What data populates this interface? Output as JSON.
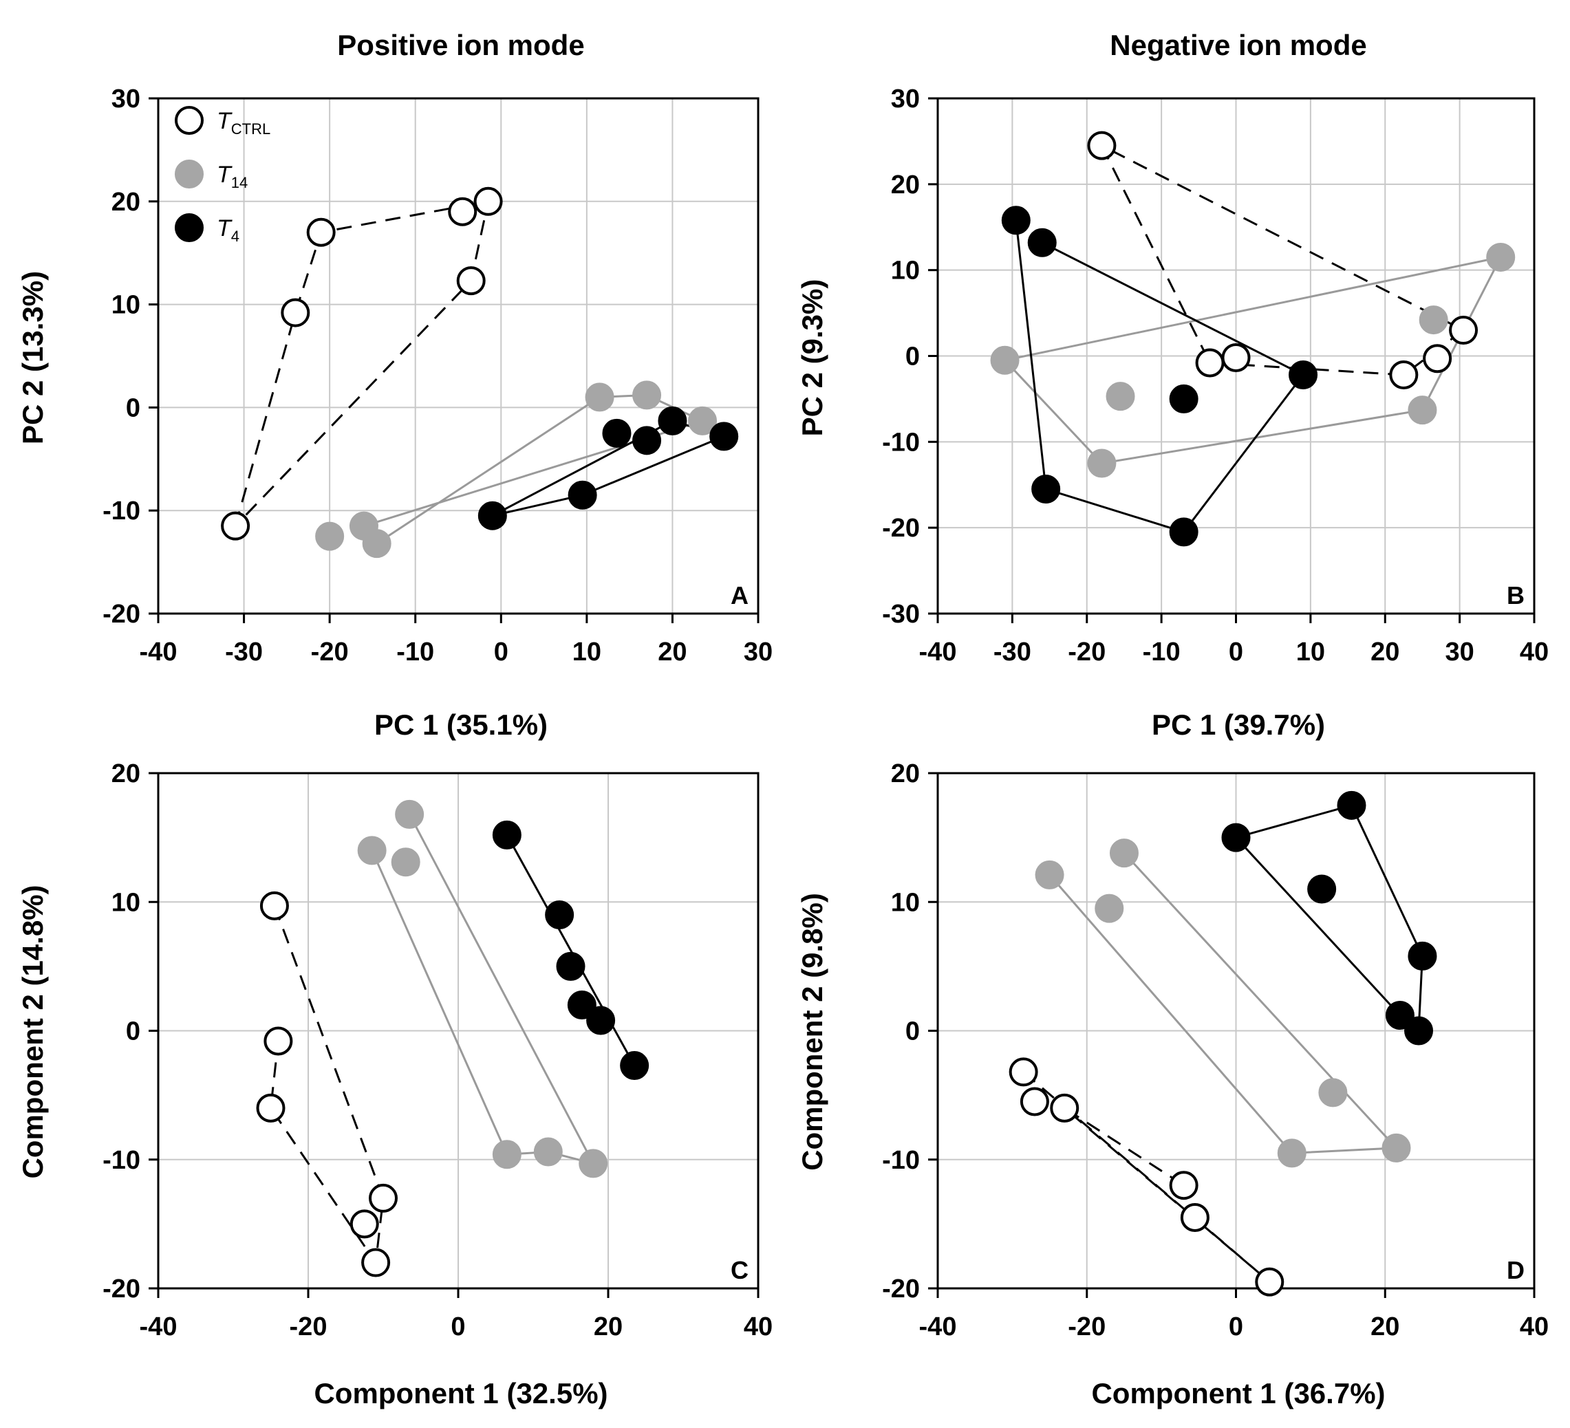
{
  "figure": {
    "col_titles": [
      "Positive ion mode",
      "Negative ion mode"
    ],
    "legend": [
      {
        "label": "T",
        "sub": "CTRL",
        "style": "open"
      },
      {
        "label": "T",
        "sub": "14",
        "style": "gray"
      },
      {
        "label": "T",
        "sub": "4",
        "style": "black"
      }
    ],
    "colors": {
      "gray": "#a6a6a6",
      "black": "#000000",
      "open": "#ffffff",
      "grid": "#c8c8c8",
      "gray_line": "#9a9a9a"
    }
  },
  "chart_data": [
    {
      "type": "scatter",
      "panel": "A",
      "xlabel": "PC 1 (35.1%)",
      "ylabel": "PC 2 (13.3%)",
      "xlim": [
        -40,
        30
      ],
      "ylim": [
        -20,
        30
      ],
      "xticks": [
        -40,
        -30,
        -20,
        -10,
        0,
        10,
        20,
        30
      ],
      "yticks": [
        -20,
        -10,
        0,
        10,
        20,
        30
      ],
      "grid": true,
      "show_legend": true,
      "series": [
        {
          "name": "T_CTRL",
          "style": "open",
          "line": "dashed",
          "points": [
            [
              -24,
              9.2
            ],
            [
              -21,
              17
            ],
            [
              -4.5,
              19
            ],
            [
              -1.5,
              20
            ],
            [
              -3.5,
              12.3
            ],
            [
              -31,
              -11.5
            ]
          ],
          "path": [
            [
              -31,
              -11.5
            ],
            [
              -24,
              9.2
            ],
            [
              -21,
              17
            ],
            [
              -1.5,
              20
            ],
            [
              -3.5,
              12.3
            ],
            [
              -31,
              -11.5
            ]
          ]
        },
        {
          "name": "T_14",
          "style": "gray",
          "line": "solid",
          "points": [
            [
              11.5,
              1
            ],
            [
              17,
              1.2
            ],
            [
              23.5,
              -1.3
            ],
            [
              -20,
              -12.5
            ],
            [
              -16,
              -11.5
            ],
            [
              -14.5,
              -13.2
            ]
          ],
          "path": [
            [
              -14.5,
              -13.2
            ],
            [
              11.5,
              1
            ],
            [
              17,
              1.2
            ],
            [
              23.5,
              -1.3
            ],
            [
              -16,
              -11.5
            ],
            [
              -14.5,
              -13.2
            ]
          ]
        },
        {
          "name": "T_4",
          "style": "black",
          "line": "solid",
          "points": [
            [
              13.5,
              -2.5
            ],
            [
              17,
              -3.2
            ],
            [
              20,
              -1.3
            ],
            [
              26,
              -2.8
            ],
            [
              9.5,
              -8.5
            ],
            [
              -1,
              -10.5
            ]
          ],
          "path": [
            [
              -1,
              -10.5
            ],
            [
              20,
              -1.3
            ],
            [
              26,
              -2.8
            ],
            [
              9.5,
              -8.5
            ],
            [
              -1,
              -10.5
            ]
          ]
        }
      ]
    },
    {
      "type": "scatter",
      "panel": "B",
      "xlabel": "PC 1 (39.7%)",
      "ylabel": "PC 2 (9.3%)",
      "xlim": [
        -40,
        40
      ],
      "ylim": [
        -30,
        30
      ],
      "xticks": [
        -40,
        -30,
        -20,
        -10,
        0,
        10,
        20,
        30,
        40
      ],
      "yticks": [
        -30,
        -20,
        -10,
        0,
        10,
        20,
        30
      ],
      "grid": true,
      "show_legend": false,
      "series": [
        {
          "name": "T_CTRL",
          "style": "open",
          "line": "dashed",
          "points": [
            [
              -18,
              24.5
            ],
            [
              -3.5,
              -0.8
            ],
            [
              0,
              -0.2
            ],
            [
              22.5,
              -2.2
            ],
            [
              27,
              -0.3
            ],
            [
              30.5,
              3
            ]
          ],
          "path": [
            [
              -18,
              24.5
            ],
            [
              -3.5,
              -0.8
            ],
            [
              22.5,
              -2.2
            ],
            [
              30.5,
              3
            ],
            [
              -18,
              24.5
            ]
          ]
        },
        {
          "name": "T_14",
          "style": "gray",
          "line": "solid",
          "points": [
            [
              -31,
              -0.5
            ],
            [
              -15.5,
              -4.7
            ],
            [
              -18,
              -12.5
            ],
            [
              25,
              -6.3
            ],
            [
              26.5,
              4.2
            ],
            [
              35.5,
              11.5
            ]
          ],
          "path": [
            [
              -31,
              -0.5
            ],
            [
              35.5,
              11.5
            ],
            [
              25,
              -6.3
            ],
            [
              -18,
              -12.5
            ],
            [
              -31,
              -0.5
            ]
          ]
        },
        {
          "name": "T_4",
          "style": "black",
          "line": "solid",
          "points": [
            [
              -29.5,
              15.8
            ],
            [
              -26,
              13.2
            ],
            [
              -7,
              -5
            ],
            [
              9,
              -2.2
            ],
            [
              -25.5,
              -15.5
            ],
            [
              -7,
              -20.5
            ]
          ],
          "path": [
            [
              -29.5,
              15.8
            ],
            [
              -25.5,
              -15.5
            ],
            [
              -7,
              -20.5
            ],
            [
              9,
              -2.2
            ],
            [
              -26,
              13.2
            ]
          ]
        }
      ]
    },
    {
      "type": "scatter",
      "panel": "C",
      "xlabel": "Component  1 (32.5%)",
      "ylabel": "Component 2 (14.8%)",
      "xlim": [
        -40,
        40
      ],
      "ylim": [
        -20,
        20
      ],
      "xticks": [
        -40,
        -20,
        0,
        20,
        40
      ],
      "yticks": [
        -20,
        -10,
        0,
        10,
        20
      ],
      "grid": true,
      "show_legend": false,
      "series": [
        {
          "name": "T_CTRL",
          "style": "open",
          "line": "dashed",
          "points": [
            [
              -24.5,
              9.7
            ],
            [
              -24,
              -0.8
            ],
            [
              -25,
              -6
            ],
            [
              -10,
              -13
            ],
            [
              -12.5,
              -15
            ],
            [
              -11,
              -18
            ]
          ],
          "path": [
            [
              -24.5,
              9.7
            ],
            [
              -10,
              -13
            ],
            [
              -11,
              -18
            ],
            [
              -25,
              -6
            ],
            [
              -24,
              -0.8
            ]
          ]
        },
        {
          "name": "T_14",
          "style": "gray",
          "line": "solid",
          "points": [
            [
              -11.5,
              14
            ],
            [
              -6.5,
              16.8
            ],
            [
              -7,
              13.1
            ],
            [
              6.5,
              -9.6
            ],
            [
              12,
              -9.4
            ],
            [
              18,
              -10.3
            ]
          ],
          "path": [
            [
              -11.5,
              14
            ],
            [
              6.5,
              -9.6
            ],
            [
              12,
              -9.4
            ],
            [
              18,
              -10.3
            ],
            [
              -6.5,
              16.8
            ]
          ]
        },
        {
          "name": "T_4",
          "style": "black",
          "line": "solid",
          "points": [
            [
              6.5,
              15.2
            ],
            [
              13.5,
              9
            ],
            [
              15,
              5
            ],
            [
              16.5,
              2
            ],
            [
              19,
              0.8
            ],
            [
              23.5,
              -2.7
            ]
          ],
          "path": [
            [
              6.5,
              15.2
            ],
            [
              23.5,
              -2.7
            ]
          ]
        }
      ]
    },
    {
      "type": "scatter",
      "panel": "D",
      "xlabel": "Component  1 (36.7%)",
      "ylabel": "Component  2 (9.8%)",
      "xlim": [
        -40,
        40
      ],
      "ylim": [
        -20,
        20
      ],
      "xticks": [
        -40,
        -20,
        0,
        20,
        40
      ],
      "yticks": [
        -20,
        -10,
        0,
        10,
        20
      ],
      "grid": true,
      "show_legend": false,
      "series": [
        {
          "name": "T_CTRL",
          "style": "open",
          "line": "dashed",
          "points": [
            [
              -28.5,
              -3.2
            ],
            [
              -27,
              -5.5
            ],
            [
              -23,
              -6
            ],
            [
              -7,
              -12
            ],
            [
              -5.5,
              -14.5
            ],
            [
              4.5,
              -19.5
            ]
          ],
          "path": [
            [
              -28.5,
              -3.2
            ],
            [
              4.5,
              -19.5
            ],
            [
              -23,
              -6
            ],
            [
              -7,
              -12
            ]
          ]
        },
        {
          "name": "T_14",
          "style": "gray",
          "line": "solid",
          "points": [
            [
              -25,
              12.1
            ],
            [
              -15,
              13.8
            ],
            [
              -17,
              9.5
            ],
            [
              7.5,
              -9.5
            ],
            [
              13,
              -4.8
            ],
            [
              21.5,
              -9.1
            ]
          ],
          "path": [
            [
              -25,
              12.1
            ],
            [
              7.5,
              -9.5
            ],
            [
              21.5,
              -9.1
            ],
            [
              -15,
              13.8
            ]
          ]
        },
        {
          "name": "T_4",
          "style": "black",
          "line": "solid",
          "points": [
            [
              0,
              15
            ],
            [
              15.5,
              17.5
            ],
            [
              11.5,
              11
            ],
            [
              25,
              5.8
            ],
            [
              22,
              1.2
            ],
            [
              24.5,
              0
            ]
          ],
          "path": [
            [
              0,
              15
            ],
            [
              22,
              1.2
            ],
            [
              24.5,
              0
            ],
            [
              25,
              5.8
            ],
            [
              15.5,
              17.5
            ],
            [
              0,
              15
            ]
          ]
        }
      ]
    }
  ]
}
